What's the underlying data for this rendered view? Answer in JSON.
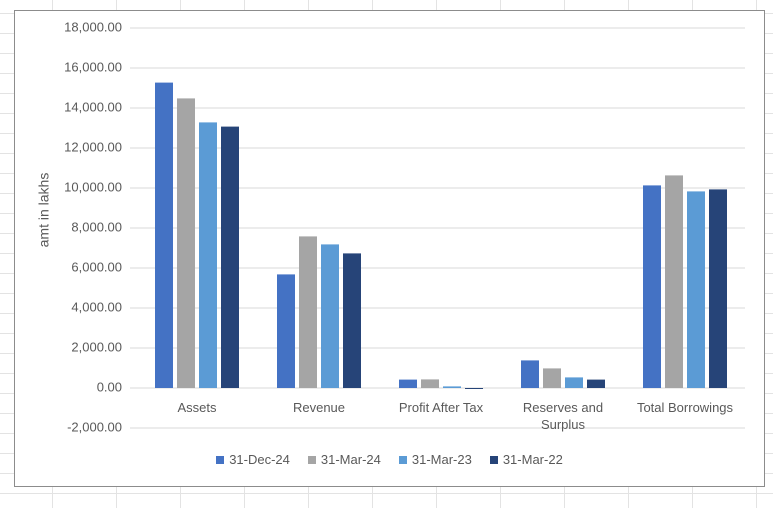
{
  "chart_data": {
    "type": "bar",
    "y_label": "amt in lakhs",
    "categories": [
      "Assets",
      "Revenue",
      "Profit After Tax",
      "Reserves and Surplus",
      "Total Borrowings"
    ],
    "series": [
      {
        "name": "31-Dec-24",
        "color": "#4472c4",
        "values": [
          15270,
          5680,
          420,
          1380,
          10130
        ]
      },
      {
        "name": "31-Mar-24",
        "color": "#a5a5a5",
        "values": [
          14480,
          7580,
          430,
          980,
          10630
        ]
      },
      {
        "name": "31-Mar-23",
        "color": "#5b9bd5",
        "values": [
          13280,
          7180,
          80,
          530,
          9830
        ]
      },
      {
        "name": "31-Mar-22",
        "color": "#264478",
        "values": [
          13070,
          6730,
          -50,
          420,
          9930
        ]
      }
    ],
    "ylim": [
      -2000,
      18000
    ],
    "yticks": [
      {
        "value": -2000,
        "label": "-2,000.00"
      },
      {
        "value": 0,
        "label": "0.00"
      },
      {
        "value": 2000,
        "label": "2,000.00"
      },
      {
        "value": 4000,
        "label": "4,000.00"
      },
      {
        "value": 6000,
        "label": "6,000.00"
      },
      {
        "value": 8000,
        "label": "8,000.00"
      },
      {
        "value": 10000,
        "label": "10,000.00"
      },
      {
        "value": 12000,
        "label": "12,000.00"
      },
      {
        "value": 14000,
        "label": "14,000.00"
      },
      {
        "value": 16000,
        "label": "16,000.00"
      },
      {
        "value": 18000,
        "label": "18,000.00"
      }
    ],
    "grid": true,
    "legend": "bottom"
  }
}
